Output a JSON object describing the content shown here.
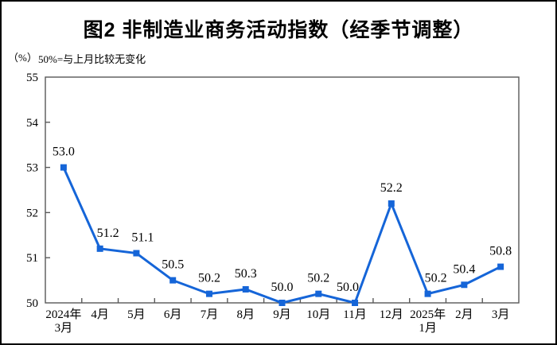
{
  "title": "图2 非制造业商务活动指数（经季节调整）",
  "subtitle": {
    "unit_label": "（%）",
    "note": "50%=与上月比较无变化"
  },
  "chart_data": {
    "type": "line",
    "title": "图2 非制造业商务活动指数（经季节调整）",
    "subtitle_note": "50%=与上月比较无变化",
    "unit": "%",
    "categories": [
      [
        "2024年",
        "3月"
      ],
      [
        "4月"
      ],
      [
        "5月"
      ],
      [
        "6月"
      ],
      [
        "7月"
      ],
      [
        "8月"
      ],
      [
        "9月"
      ],
      [
        "10月"
      ],
      [
        "11月"
      ],
      [
        "12月"
      ],
      [
        "2025年",
        "1月"
      ],
      [
        "2月"
      ],
      [
        "3月"
      ]
    ],
    "values": [
      53.0,
      51.2,
      51.1,
      50.5,
      50.2,
      50.3,
      50.0,
      50.2,
      50.0,
      52.2,
      50.2,
      50.4,
      50.8
    ],
    "data_labels": [
      "53.0",
      "51.2",
      "51.1",
      "50.5",
      "50.2",
      "50.3",
      "50.0",
      "50.2",
      "50.0",
      "52.2",
      "50.2",
      "50.4",
      "50.8"
    ],
    "ylim": [
      50,
      55
    ],
    "yticks": [
      50,
      51,
      52,
      53,
      54,
      55
    ],
    "xlabel": "",
    "ylabel": "",
    "grid": false,
    "legend": "none",
    "line_color": "#1565D8",
    "marker": "square",
    "axis_color": "#595959",
    "label_color": "#000000"
  }
}
